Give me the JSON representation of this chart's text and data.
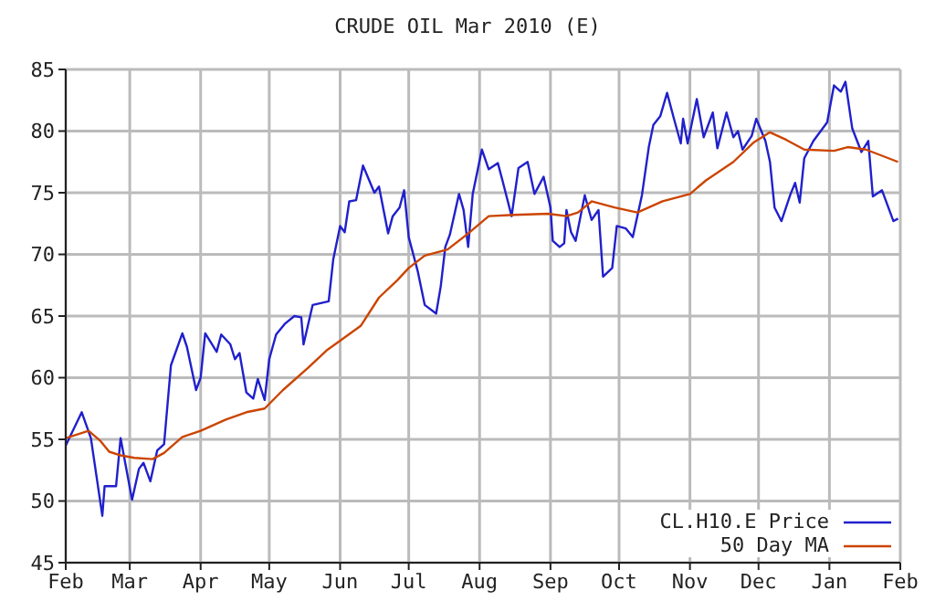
{
  "chart_data": {
    "type": "line",
    "title": "CRUDE OIL Mar 2010 (E)",
    "xlim": [
      "2009-02-01",
      "2010-02-01"
    ],
    "xticks": [
      {
        "value": "2009-02-01",
        "label": "Feb"
      },
      {
        "value": "2009-03-01",
        "label": "Mar"
      },
      {
        "value": "2009-04-01",
        "label": "Apr"
      },
      {
        "value": "2009-05-01",
        "label": "May"
      },
      {
        "value": "2009-06-01",
        "label": "Jun"
      },
      {
        "value": "2009-07-01",
        "label": "Jul"
      },
      {
        "value": "2009-08-01",
        "label": "Aug"
      },
      {
        "value": "2009-09-01",
        "label": "Sep"
      },
      {
        "value": "2009-10-01",
        "label": "Oct"
      },
      {
        "value": "2009-11-01",
        "label": "Nov"
      },
      {
        "value": "2009-12-01",
        "label": "Dec"
      },
      {
        "value": "2010-01-01",
        "label": "Jan"
      },
      {
        "value": "2010-02-01",
        "label": "Feb"
      }
    ],
    "ylim": [
      45,
      85
    ],
    "yticks": [
      45,
      50,
      55,
      60,
      65,
      70,
      75,
      80,
      85
    ],
    "grid": true,
    "legend": "bottom right",
    "series": [
      {
        "name": "CL.H10.E Price",
        "color": "#2020cc",
        "x": [
          "2009-02-01",
          "2009-02-08",
          "2009-02-12",
          "2009-02-17",
          "2009-02-18",
          "2009-02-23",
          "2009-02-25",
          "2009-03-02",
          "2009-03-05",
          "2009-03-07",
          "2009-03-10",
          "2009-03-13",
          "2009-03-16",
          "2009-03-19",
          "2009-03-24",
          "2009-03-26",
          "2009-03-30",
          "2009-04-01",
          "2009-04-03",
          "2009-04-08",
          "2009-04-10",
          "2009-04-14",
          "2009-04-16",
          "2009-04-18",
          "2009-04-21",
          "2009-04-24",
          "2009-04-26",
          "2009-04-29",
          "2009-05-01",
          "2009-05-04",
          "2009-05-08",
          "2009-05-12",
          "2009-05-15",
          "2009-05-16",
          "2009-05-20",
          "2009-05-27",
          "2009-05-29",
          "2009-06-01",
          "2009-06-03",
          "2009-06-05",
          "2009-06-08",
          "2009-06-11",
          "2009-06-16",
          "2009-06-18",
          "2009-06-22",
          "2009-06-24",
          "2009-06-27",
          "2009-06-29",
          "2009-07-01",
          "2009-07-05",
          "2009-07-08",
          "2009-07-13",
          "2009-07-15",
          "2009-07-17",
          "2009-07-19",
          "2009-07-23",
          "2009-07-25",
          "2009-07-27",
          "2009-07-29",
          "2009-08-02",
          "2009-08-05",
          "2009-08-09",
          "2009-08-11",
          "2009-08-15",
          "2009-08-18",
          "2009-08-22",
          "2009-08-25",
          "2009-08-29",
          "2009-09-01",
          "2009-09-02",
          "2009-09-05",
          "2009-09-07",
          "2009-09-08",
          "2009-09-10",
          "2009-09-12",
          "2009-09-16",
          "2009-09-19",
          "2009-09-22",
          "2009-09-24",
          "2009-09-28",
          "2009-09-30",
          "2009-10-04",
          "2009-10-07",
          "2009-10-11",
          "2009-10-14",
          "2009-10-16",
          "2009-10-19",
          "2009-10-22",
          "2009-10-25",
          "2009-10-28",
          "2009-10-29",
          "2009-10-31",
          "2009-11-04",
          "2009-11-07",
          "2009-11-11",
          "2009-11-13",
          "2009-11-17",
          "2009-11-20",
          "2009-11-22",
          "2009-11-24",
          "2009-11-28",
          "2009-11-30",
          "2009-12-04",
          "2009-12-06",
          "2009-12-08",
          "2009-12-11",
          "2009-12-15",
          "2009-12-17",
          "2009-12-19",
          "2009-12-21",
          "2009-12-25",
          "2009-12-31",
          "2010-01-03",
          "2010-01-06",
          "2010-01-08",
          "2010-01-11",
          "2010-01-15",
          "2010-01-18",
          "2010-01-20",
          "2010-01-24",
          "2010-01-29",
          "2010-01-31"
        ],
        "values": [
          54.5,
          57.2,
          55.1,
          48.8,
          51.2,
          51.2,
          55.1,
          50.1,
          52.6,
          53.1,
          51.6,
          54.1,
          54.6,
          61,
          63.6,
          62.5,
          59,
          60,
          63.6,
          62.1,
          63.5,
          62.7,
          61.5,
          62,
          58.8,
          58.3,
          59.9,
          58.2,
          61.5,
          63.5,
          64.4,
          65,
          64.9,
          62.7,
          65.9,
          66.2,
          69.6,
          72.3,
          71.8,
          74.3,
          74.4,
          77.2,
          75,
          75.5,
          71.7,
          73.1,
          73.8,
          75.2,
          71.4,
          68.6,
          65.9,
          65.2,
          67.4,
          70.6,
          71.6,
          74.9,
          73.6,
          70.6,
          74.9,
          78.5,
          76.9,
          77.4,
          76,
          73.1,
          77,
          77.5,
          74.9,
          76.3,
          73.8,
          71.1,
          70.6,
          70.9,
          73.6,
          71.8,
          71.1,
          74.8,
          72.8,
          73.6,
          68.2,
          68.9,
          72.3,
          72.1,
          71.4,
          74.8,
          78.7,
          80.5,
          81.2,
          83.1,
          81,
          79,
          81,
          79,
          82.6,
          79.5,
          81.5,
          78.6,
          81.5,
          79.5,
          80,
          78.5,
          79.6,
          81,
          79.2,
          77.5,
          73.8,
          72.7,
          74.9,
          75.8,
          74.2,
          77.8,
          79.2,
          80.7,
          83.7,
          83.2,
          84,
          80.2,
          78.3,
          79.2,
          74.7,
          75.2,
          72.7,
          72.9
        ]
      },
      {
        "name": "50 Day MA",
        "color": "#cc4400",
        "x": [
          "2009-02-01",
          "2009-02-11",
          "2009-02-16",
          "2009-02-20",
          "2009-02-25",
          "2009-03-03",
          "2009-03-11",
          "2009-03-16",
          "2009-03-24",
          "2009-04-01",
          "2009-04-12",
          "2009-04-21",
          "2009-04-29",
          "2009-05-07",
          "2009-05-18",
          "2009-05-26",
          "2009-06-01",
          "2009-06-10",
          "2009-06-18",
          "2009-06-26",
          "2009-07-01",
          "2009-07-08",
          "2009-07-18",
          "2009-07-27",
          "2009-08-05",
          "2009-08-16",
          "2009-08-31",
          "2009-09-08",
          "2009-09-13",
          "2009-09-19",
          "2009-09-29",
          "2009-10-09",
          "2009-10-20",
          "2009-11-01",
          "2009-11-08",
          "2009-11-20",
          "2009-11-29",
          "2009-12-06",
          "2009-12-13",
          "2009-12-21",
          "2010-01-03",
          "2010-01-09",
          "2010-01-17",
          "2010-01-31"
        ],
        "values": [
          55.1,
          55.7,
          54.9,
          54,
          53.7,
          53.5,
          53.4,
          53.9,
          55.2,
          55.7,
          56.6,
          57.2,
          57.5,
          59,
          60.8,
          62.2,
          63,
          64.2,
          66.5,
          67.9,
          68.9,
          69.9,
          70.4,
          71.7,
          73.1,
          73.2,
          73.3,
          73.1,
          73.4,
          74.3,
          73.8,
          73.4,
          74.3,
          74.9,
          76,
          77.5,
          79.1,
          79.9,
          79.3,
          78.5,
          78.4,
          78.7,
          78.5,
          77.5
        ]
      }
    ]
  }
}
